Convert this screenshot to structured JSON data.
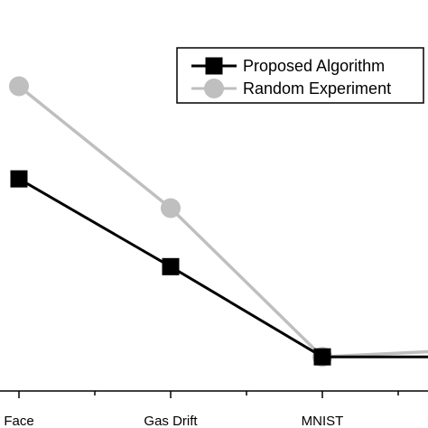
{
  "chart_data": {
    "type": "line",
    "categories": [
      "Face",
      "Gas Drift",
      "MNIST",
      ""
    ],
    "series": [
      {
        "name": "Proposed Algorithm",
        "color": "#000000",
        "marker": "square",
        "values": [
          0.87,
          0.51,
          0.14,
          0.14
        ]
      },
      {
        "name": "Random Experiment",
        "color": "#bfbfbf",
        "marker": "circle",
        "values": [
          1.25,
          0.75,
          0.14,
          0.17
        ]
      }
    ],
    "xlabel": "",
    "ylabel": "",
    "ylim": [
      0,
      1.3
    ],
    "grid": false,
    "legend_position": "top-right"
  }
}
